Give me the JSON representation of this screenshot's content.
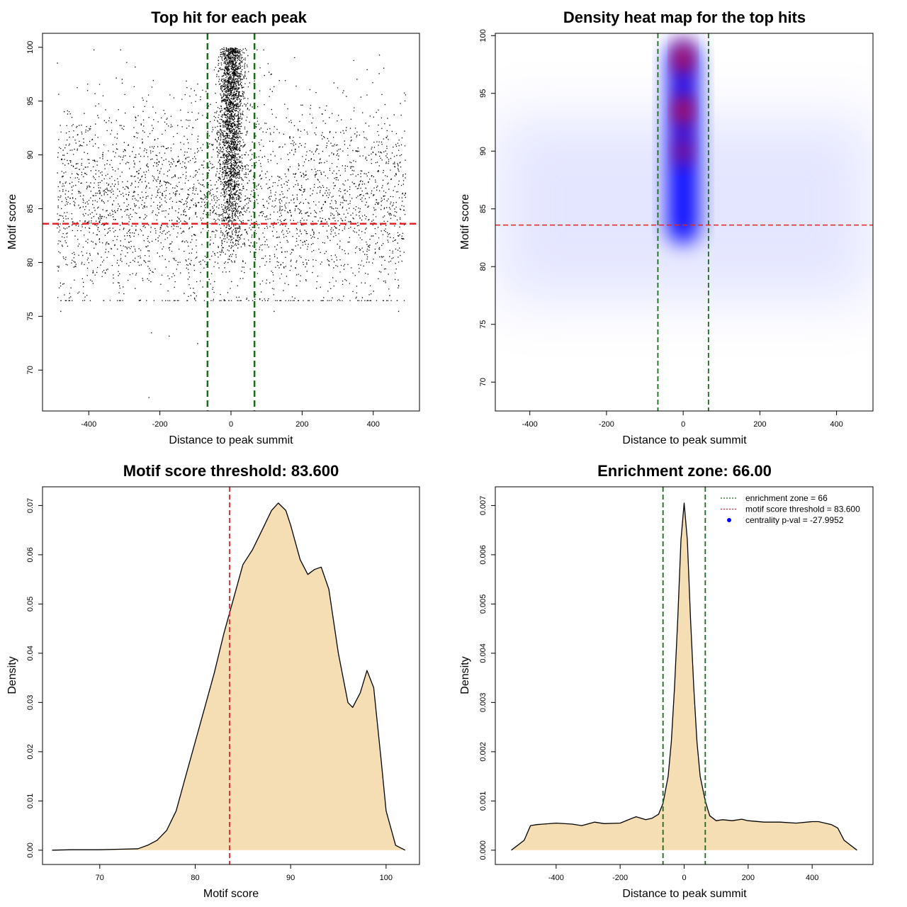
{
  "colors": {
    "threshold_line": "#e0242a",
    "zone_line": "#1a6b1a",
    "density_fill": "#f5deb3",
    "points": "#000000",
    "heat_low": "#ffffff",
    "heat_mid": "#0000ff",
    "heat_high": "#ff0000",
    "legend_dot": "#0000ff"
  },
  "chart_data": [
    {
      "id": "scatter",
      "type": "scatter",
      "title": "Top hit for each peak",
      "xlabel": "Distance to peak summit",
      "ylabel": "Motif score",
      "xlim": [
        -530,
        530
      ],
      "ylim": [
        66.2,
        101.3
      ],
      "xticks": [
        -400,
        -200,
        0,
        200,
        400
      ],
      "yticks": [
        70,
        75,
        80,
        85,
        90,
        95,
        100
      ],
      "xtick_labels": [
        "-400",
        "-200",
        "0",
        "200",
        "400"
      ],
      "ytick_labels": [
        "70",
        "75",
        "80",
        "85",
        "90",
        "95",
        "100"
      ],
      "threshold_y": 83.6,
      "zone_x": [
        -66,
        66
      ],
      "point_summary": {
        "background": {
          "x_range": [
            -490,
            490
          ],
          "y_mean": 85.5,
          "y_sd": 4.8,
          "count": 3400
        },
        "central": {
          "x_mean": 0,
          "x_sd": 17,
          "y_range": [
            80,
            100
          ],
          "count": 2400
        },
        "outliers": [
          [
            -232,
            67.5
          ],
          [
            -225,
            73.5
          ],
          [
            -175,
            73.2
          ],
          [
            -95,
            72.5
          ],
          [
            -480,
            75.5
          ],
          [
            470,
            75.5
          ],
          [
            120,
            75.5
          ]
        ]
      }
    },
    {
      "id": "heatmap",
      "type": "heatmap",
      "title": "Density heat map for the top hits",
      "xlabel": "Distance to peak summit",
      "ylabel": "Motif score",
      "xlim": [
        -490,
        495
      ],
      "ylim": [
        67.5,
        100.2
      ],
      "xticks": [
        -400,
        -200,
        0,
        200,
        400
      ],
      "yticks": [
        70,
        75,
        80,
        85,
        90,
        95,
        100
      ],
      "xtick_labels": [
        "-400",
        "-200",
        "0",
        "200",
        "400"
      ],
      "ytick_labels": [
        "70",
        "75",
        "80",
        "85",
        "90",
        "95",
        "100"
      ],
      "threshold_y": 83.6,
      "zone_x": [
        -66,
        66
      ],
      "hotspots": [
        {
          "x": 0,
          "y": 98,
          "intensity": 1.0
        },
        {
          "x": 0,
          "y": 93.5,
          "intensity": 1.0
        },
        {
          "x": 0,
          "y": 90,
          "intensity": 0.75
        }
      ]
    },
    {
      "id": "score_density",
      "type": "area",
      "title": "Motif score threshold: 83.600",
      "xlabel": "Motif score",
      "ylabel": "Density",
      "xlim": [
        64,
        103.5
      ],
      "ylim": [
        -0.0029,
        0.0738
      ],
      "xticks": [
        70,
        80,
        90,
        100
      ],
      "yticks": [
        0.0,
        0.01,
        0.02,
        0.03,
        0.04,
        0.05,
        0.06,
        0.07
      ],
      "xtick_labels": [
        "70",
        "80",
        "90",
        "100"
      ],
      "ytick_labels": [
        "0.00",
        "0.01",
        "0.02",
        "0.03",
        "0.04",
        "0.05",
        "0.06",
        "0.07"
      ],
      "threshold_x": 83.6,
      "x": [
        65,
        67,
        70,
        72,
        74,
        75,
        76,
        77,
        78,
        79,
        80,
        81,
        82,
        83,
        84,
        85,
        86,
        87,
        88,
        88.7,
        89.5,
        90,
        91,
        91.8,
        92.5,
        93.2,
        94,
        95,
        96,
        96.5,
        97.3,
        98,
        98.7,
        99.5,
        100,
        101,
        102
      ],
      "y": [
        0,
        0.0001,
        0.0001,
        0.0002,
        0.0003,
        0.001,
        0.002,
        0.004,
        0.008,
        0.015,
        0.022,
        0.029,
        0.036,
        0.044,
        0.051,
        0.058,
        0.061,
        0.065,
        0.069,
        0.0705,
        0.069,
        0.066,
        0.059,
        0.056,
        0.057,
        0.0575,
        0.053,
        0.04,
        0.03,
        0.029,
        0.032,
        0.0365,
        0.033,
        0.018,
        0.008,
        0.001,
        0
      ]
    },
    {
      "id": "distance_density",
      "type": "area",
      "title": "Enrichment zone: 66.00",
      "xlabel": "Distance to peak summit",
      "ylabel": "Density",
      "xlim": [
        -590,
        590
      ],
      "ylim": [
        -0.00029,
        0.00738
      ],
      "xticks": [
        -400,
        -200,
        0,
        200,
        400
      ],
      "yticks": [
        0.0,
        0.001,
        0.002,
        0.003,
        0.004,
        0.005,
        0.006,
        0.007
      ],
      "xtick_labels": [
        "-400",
        "-200",
        "0",
        "200",
        "400"
      ],
      "ytick_labels": [
        "0.000",
        "0.001",
        "0.002",
        "0.003",
        "0.004",
        "0.005",
        "0.006",
        "0.007"
      ],
      "zone_x": [
        -66,
        66
      ],
      "x": [
        -540,
        -500,
        -480,
        -460,
        -400,
        -350,
        -320,
        -280,
        -250,
        -200,
        -170,
        -150,
        -120,
        -100,
        -80,
        -66,
        -50,
        -40,
        -30,
        -20,
        -10,
        0,
        10,
        20,
        30,
        40,
        50,
        66,
        80,
        100,
        120,
        150,
        180,
        200,
        250,
        300,
        350,
        400,
        420,
        460,
        480,
        500,
        540
      ],
      "y": [
        0,
        0.0002,
        0.0005,
        0.00052,
        0.00055,
        0.00053,
        0.0005,
        0.00057,
        0.00054,
        0.00055,
        0.00063,
        0.00068,
        0.00062,
        0.00065,
        0.00073,
        0.00095,
        0.0015,
        0.0022,
        0.0033,
        0.0047,
        0.0063,
        0.00705,
        0.0063,
        0.0047,
        0.0033,
        0.0022,
        0.0015,
        0.001,
        0.0007,
        0.0006,
        0.00062,
        0.0006,
        0.00063,
        0.0006,
        0.00057,
        0.00057,
        0.00055,
        0.00058,
        0.00058,
        0.00052,
        0.00045,
        0.0002,
        0
      ],
      "legend": {
        "entries": [
          {
            "label": "enrichment zone = 66",
            "kind": "line",
            "color_key": "zone_line"
          },
          {
            "label": "motif score threshold = 83.600",
            "kind": "line",
            "color_key": "threshold_line"
          },
          {
            "label": "centrality p-val = -27.9952",
            "kind": "dot",
            "color_key": "legend_dot"
          }
        ],
        "placement": "top-right"
      }
    }
  ]
}
